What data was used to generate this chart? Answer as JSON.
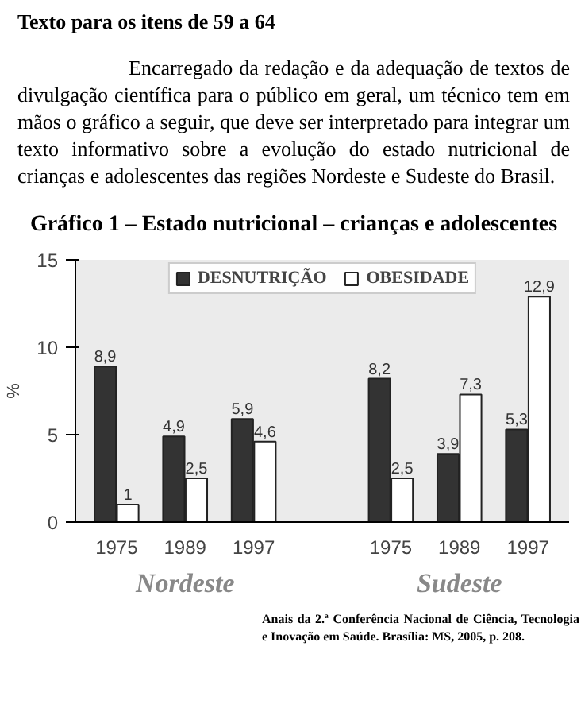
{
  "chart_data": {
    "type": "bar",
    "title": "Gráfico 1 – Estado nutricional – crianças e adolescentes",
    "annotations": [
      "Texto para os itens de 59 a 64",
      "Encarregado da redação e da adequação de textos de divulgação científica para o público em geral, um técnico tem em mãos o gráfico a seguir, que deve ser interpretado para integrar um texto informativo sobre a evolução do estado nutricional de crianças e adolescentes das regiões Nordeste e Sudeste do Brasil.",
      "Nordeste",
      "Sudeste",
      "Anais da 2.ª Conferência Nacional de Ciência, Tecnologia e Inovação em Saúde. Brasília: MS, 2005, p. 208."
    ],
    "ylabel": "%",
    "categories": [
      "1975",
      "1989",
      "1997",
      null,
      "1975",
      "1989",
      "1997"
    ],
    "series": [
      {
        "name": "DESNUTRIÇÃO",
        "color": "#333333",
        "values": [
          8.9,
          4.9,
          5.9,
          null,
          8.2,
          3.9,
          5.3
        ],
        "value_labels": [
          "8,9",
          "4,9",
          "5,9",
          null,
          "8,2",
          "3,9",
          "5,3"
        ]
      },
      {
        "name": "OBESIDADE",
        "color": "#ffffff",
        "values": [
          1,
          2.5,
          4.6,
          null,
          2.5,
          7.3,
          12.9
        ],
        "value_labels": [
          "1",
          "2,5",
          "4,6",
          null,
          "2,5",
          "7,3",
          "12,9"
        ]
      }
    ],
    "ylim": [
      0,
      15
    ],
    "yticks": [
      0,
      5,
      10,
      15
    ],
    "grid": false,
    "legend": "top"
  }
}
